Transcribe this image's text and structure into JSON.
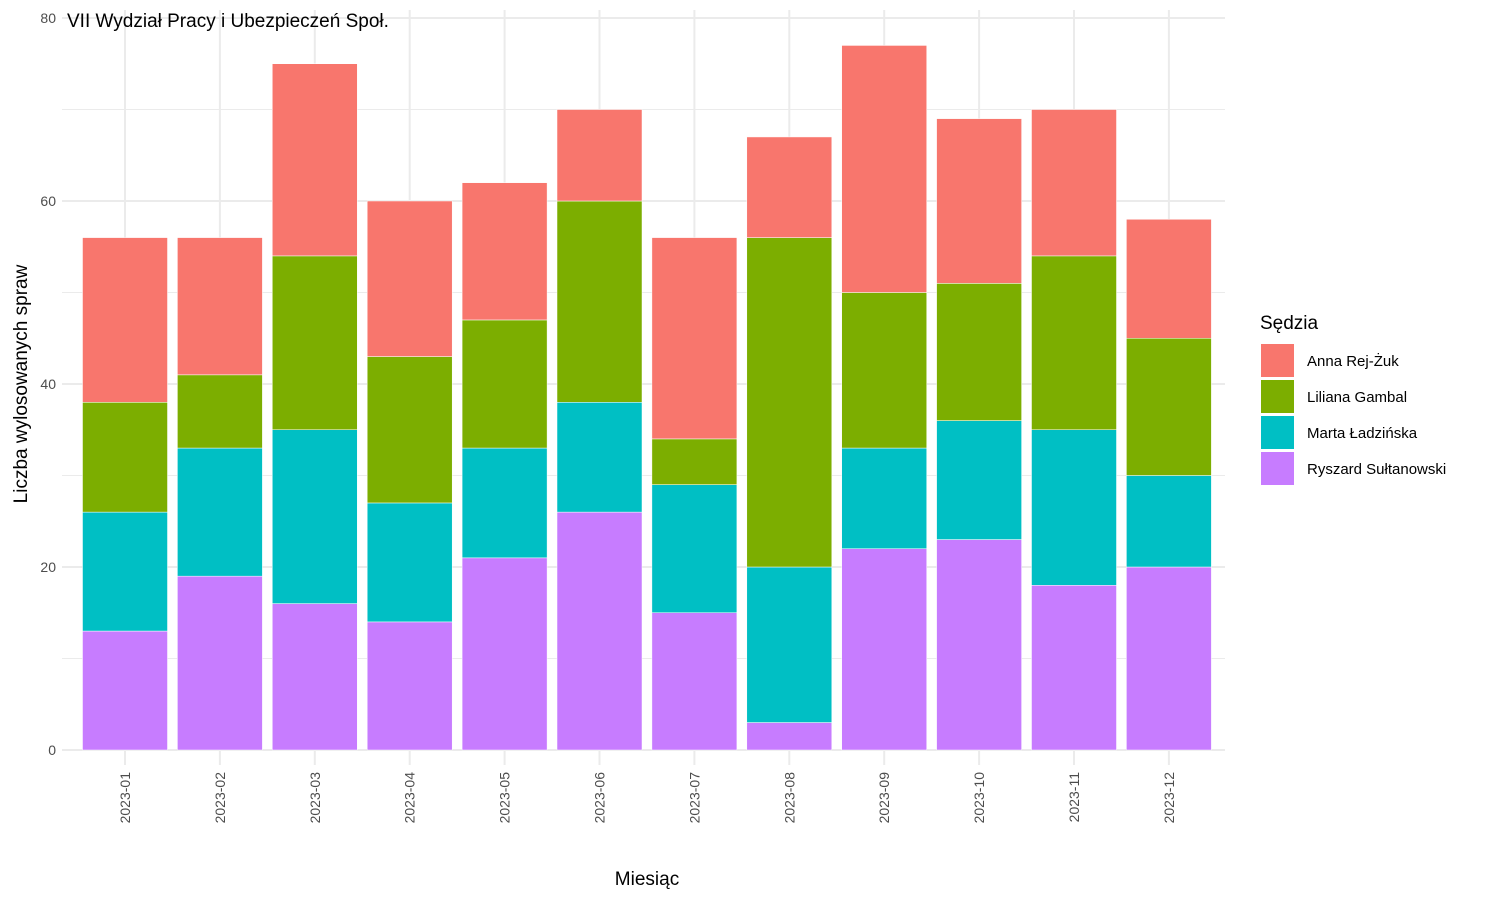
{
  "chart_data": {
    "type": "bar",
    "stacked": true,
    "title": "VII Wydział Pracy i Ubezpieczeń Społ.",
    "xlabel": "Miesiąc",
    "ylabel": "Liczba wylosowanych spraw",
    "ylim": [
      0,
      80
    ],
    "yticks": [
      "0",
      "20",
      "40",
      "60",
      "80"
    ],
    "grid": true,
    "legend_title": "Sędzia",
    "legend_position": "right",
    "categories": [
      "2023-01",
      "2023-02",
      "2023-03",
      "2023-04",
      "2023-05",
      "2023-06",
      "2023-07",
      "2023-08",
      "2023-09",
      "2023-10",
      "2023-11",
      "2023-12"
    ],
    "series": [
      {
        "name": "Ryszard Sułtanowski",
        "color": "#C77CFF",
        "values": [
          13,
          19,
          16,
          14,
          21,
          26,
          15,
          3,
          22,
          23,
          18,
          20
        ]
      },
      {
        "name": "Marta Ładzińska",
        "color": "#00BFC4",
        "values": [
          13,
          14,
          19,
          13,
          12,
          12,
          14,
          17,
          11,
          13,
          17,
          10
        ]
      },
      {
        "name": "Liliana Gambal",
        "color": "#7CAE00",
        "values": [
          12,
          8,
          19,
          16,
          14,
          22,
          5,
          36,
          17,
          15,
          19,
          15
        ]
      },
      {
        "name": "Anna Rej-Żuk",
        "color": "#F8766D",
        "values": [
          18,
          15,
          21,
          17,
          15,
          10,
          22,
          11,
          27,
          18,
          16,
          13
        ]
      }
    ],
    "legend_order": [
      "Anna Rej-Żuk",
      "Liliana Gambal",
      "Marta Ładzińska",
      "Ryszard Sułtanowski"
    ]
  }
}
